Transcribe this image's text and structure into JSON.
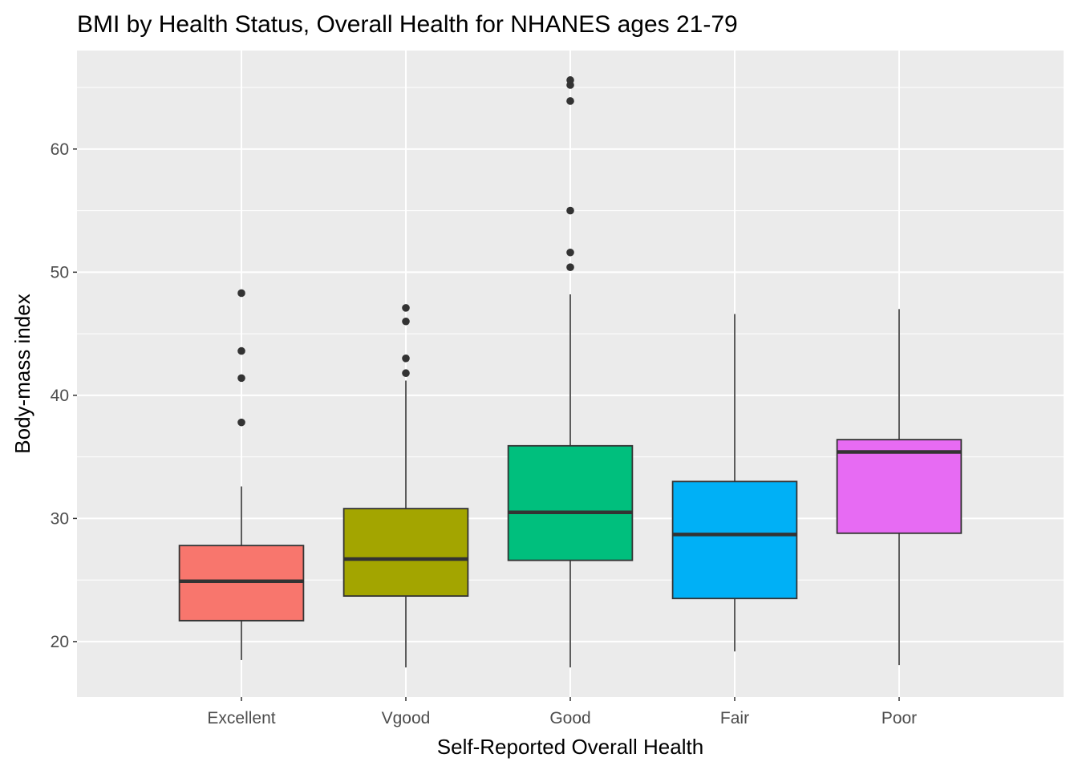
{
  "chart_data": {
    "type": "boxplot",
    "title": "BMI by Health Status, Overall Health for NHANES ages 21-79",
    "xlabel": "Self-Reported Overall Health",
    "ylabel": "Body-mass index",
    "ylim": [
      15.5,
      68
    ],
    "y_ticks": [
      20,
      30,
      40,
      50,
      60
    ],
    "grid": true,
    "legend": "none",
    "categories": [
      "Excellent",
      "Vgood",
      "Good",
      "Fair",
      "Poor"
    ],
    "colors": [
      "#F8766D",
      "#A3A500",
      "#00BF7D",
      "#00B0F6",
      "#E76BF3"
    ],
    "series": [
      {
        "q1": 21.7,
        "median": 24.9,
        "q3": 27.8,
        "whisker_low": 18.5,
        "whisker_high": 32.6,
        "outliers": [
          37.8,
          41.4,
          43.6,
          48.3
        ]
      },
      {
        "q1": 23.7,
        "median": 26.7,
        "q3": 30.8,
        "whisker_low": 17.9,
        "whisker_high": 41.2,
        "outliers": [
          41.8,
          43.0,
          46.0,
          47.1
        ]
      },
      {
        "q1": 26.6,
        "median": 30.5,
        "q3": 35.9,
        "whisker_low": 17.9,
        "whisker_high": 48.2,
        "outliers": [
          50.4,
          51.6,
          55.0,
          63.9,
          65.2,
          65.6
        ]
      },
      {
        "q1": 23.5,
        "median": 28.7,
        "q3": 33.0,
        "whisker_low": 19.2,
        "whisker_high": 46.6,
        "outliers": []
      },
      {
        "q1": 28.8,
        "median": 35.4,
        "q3": 36.4,
        "whisker_low": 18.1,
        "whisker_high": 47.0,
        "outliers": []
      }
    ]
  }
}
